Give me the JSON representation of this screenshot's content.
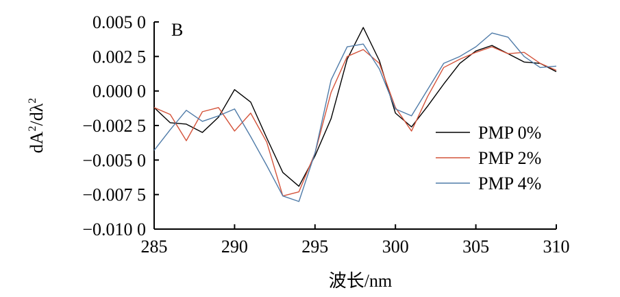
{
  "chart_data": {
    "type": "line",
    "panel_label": "B",
    "xlabel": "波长/nm",
    "ylabel_base": "dA",
    "ylabel_sup1": "2",
    "ylabel_mid": "/dλ",
    "ylabel_sup2": "2",
    "xlim": [
      285,
      310
    ],
    "ylim": [
      -0.01,
      0.005
    ],
    "x_ticks": [
      285,
      290,
      295,
      300,
      305,
      310
    ],
    "x_tick_labels": [
      "285",
      "290",
      "295",
      "300",
      "305",
      "310"
    ],
    "y_ticks": [
      0.005,
      0.0025,
      0.0,
      -0.0025,
      -0.005,
      -0.0075,
      -0.01
    ],
    "y_tick_labels": [
      "0.005 0",
      "0.002 5",
      "0.000 0",
      "−0.002 5",
      "−0.005 0",
      "−0.007 5",
      "−0.010 0"
    ],
    "grid": false,
    "legend_position": "right",
    "x": [
      285,
      286,
      287,
      288,
      289,
      290,
      291,
      292,
      293,
      294,
      295,
      296,
      297,
      298,
      299,
      300,
      301,
      302,
      303,
      304,
      305,
      306,
      307,
      308,
      309,
      310
    ],
    "series": [
      {
        "name": "PMP 0%",
        "color": "#000000",
        "values": [
          -0.0012,
          -0.0023,
          -0.0024,
          -0.003,
          -0.0019,
          0.0001,
          -0.0008,
          -0.0034,
          -0.0059,
          -0.0069,
          -0.0047,
          -0.002,
          0.0023,
          0.0046,
          0.0022,
          -0.0016,
          -0.0026,
          -0.0011,
          0.0005,
          0.002,
          0.0029,
          0.0033,
          0.0027,
          0.0021,
          0.002,
          0.0014
        ]
      },
      {
        "name": "PMP 2%",
        "color": "#d4533a",
        "values": [
          -0.0012,
          -0.0017,
          -0.0036,
          -0.0015,
          -0.0012,
          -0.0029,
          -0.0016,
          -0.0037,
          -0.0076,
          -0.0073,
          -0.0045,
          -0.0001,
          0.0025,
          0.003,
          0.002,
          -0.0012,
          -0.0029,
          -0.0004,
          0.0017,
          0.0023,
          0.0028,
          0.0032,
          0.0027,
          0.0028,
          0.002,
          0.0015
        ]
      },
      {
        "name": "PMP 4%",
        "color": "#4f7ba8",
        "values": [
          -0.0043,
          -0.0028,
          -0.0014,
          -0.0022,
          -0.0018,
          -0.0013,
          -0.0033,
          -0.0054,
          -0.0076,
          -0.008,
          -0.0045,
          0.0008,
          0.0032,
          0.0034,
          0.0016,
          -0.0013,
          -0.0018,
          0.0001,
          0.002,
          0.0025,
          0.0032,
          0.0042,
          0.0039,
          0.0025,
          0.0017,
          0.0018
        ]
      }
    ]
  }
}
